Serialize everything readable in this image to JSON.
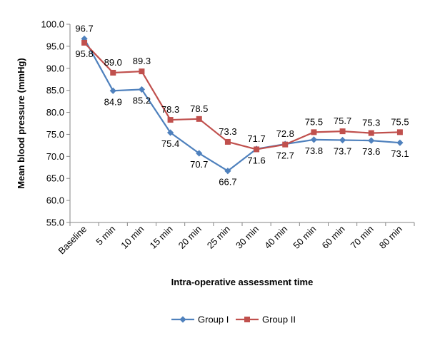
{
  "chart_data": {
    "type": "line",
    "title": "",
    "xlabel": "Intra-operative assessment time",
    "ylabel": "Mean blood pressure (mmHg)",
    "categories": [
      "Baseline",
      "5 min",
      "10 min",
      "15 min",
      "20 min",
      "25 min",
      "30 min",
      "40 min",
      "50 min",
      "60 min",
      "70 min",
      "80 min"
    ],
    "ylim": [
      55.0,
      100.0
    ],
    "yticks": [
      "55.0",
      "60.0",
      "65.0",
      "70.0",
      "75.0",
      "80.0",
      "85.0",
      "90.0",
      "95.0",
      "100.0"
    ],
    "grid": false,
    "legend_position": "bottom",
    "series": [
      {
        "name": "Group I",
        "color": "#4F81BD",
        "marker": "diamond",
        "values": [
          96.7,
          84.9,
          85.2,
          75.4,
          70.7,
          66.7,
          71.7,
          72.8,
          73.8,
          73.7,
          73.6,
          73.1
        ],
        "labels": [
          "96.7",
          "84.9",
          "85.2",
          "75.4",
          "70.7",
          "66.7",
          "71.7",
          "72.8",
          "73.8",
          "73.7",
          "73.6",
          "73.1"
        ]
      },
      {
        "name": "Group II",
        "color": "#C0504D",
        "marker": "square",
        "values": [
          95.8,
          89.0,
          89.3,
          78.3,
          78.5,
          73.3,
          71.6,
          72.7,
          75.5,
          75.7,
          75.3,
          75.5
        ],
        "labels": [
          "95.8",
          "89.0",
          "89.3",
          "78.3",
          "78.5",
          "73.3",
          "71.6",
          "72.7",
          "75.5",
          "75.7",
          "75.3",
          "75.5"
        ]
      }
    ]
  }
}
